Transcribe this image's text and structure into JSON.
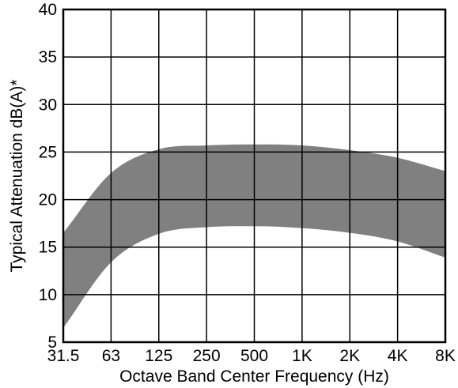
{
  "chart_data": {
    "type": "area",
    "title": "",
    "xlabel": "Octave Band Center Frequency (Hz)",
    "ylabel": "Typical Attenuation dB(A)*",
    "categories": [
      "31.5",
      "63",
      "125",
      "250",
      "500",
      "1K",
      "2K",
      "4K",
      "8K"
    ],
    "ylim": [
      5,
      40
    ],
    "yticks": [
      5,
      10,
      15,
      20,
      25,
      30,
      35,
      40
    ],
    "grid": true,
    "legend": "none",
    "band_color": "#808080",
    "series": [
      {
        "role": "upper",
        "values": [
          16.5,
          22.8,
          25.3,
          25.7,
          25.8,
          25.7,
          25.2,
          24.4,
          23.0
        ]
      },
      {
        "role": "lower",
        "values": [
          6.5,
          13.4,
          16.4,
          17.1,
          17.2,
          17.0,
          16.5,
          15.6,
          13.9
        ]
      }
    ]
  }
}
